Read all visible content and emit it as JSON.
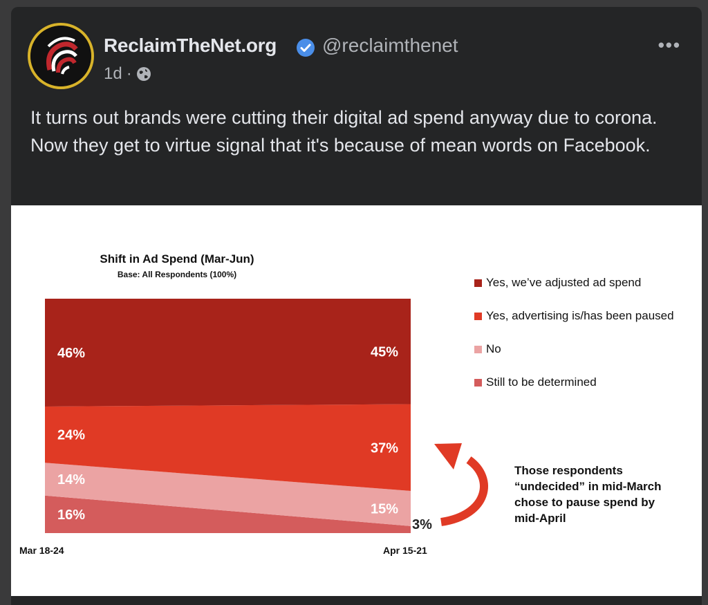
{
  "post": {
    "author_name": "ReclaimTheNet.org",
    "handle": "@reclaimthenet",
    "time": "1d",
    "separator": "·",
    "more_label": "•••",
    "text": "It turns out brands were cutting their digital ad spend anyway due to corona. Now they get to virtue signal that it's because of mean words on Facebook."
  },
  "icons": {
    "verified": "verified-badge-icon",
    "privacy": "globe-icon",
    "more": "more-options-icon"
  },
  "colors": {
    "adjusted": "#a8231a",
    "paused": "#e03a25",
    "no": "#eba3a3",
    "undetermined": "#d45c5c",
    "verified": "#4a8ee8"
  },
  "chart_data": {
    "type": "area",
    "title": "Shift in Ad Spend (Mar-Jun)",
    "subtitle": "Base:  All Respondents (100%)",
    "x": [
      "Mar 18-24",
      "Apr 15-21"
    ],
    "series": [
      {
        "name": "Yes, we’ve adjusted ad spend",
        "values": [
          46,
          45
        ],
        "labels": [
          "46%",
          "45%"
        ]
      },
      {
        "name": "Yes, advertising is/has been paused",
        "values": [
          24,
          37
        ],
        "labels": [
          "24%",
          "37%"
        ]
      },
      {
        "name": "No",
        "values": [
          14,
          15
        ],
        "labels": [
          "14%",
          "15%"
        ]
      },
      {
        "name": "Still to be determined",
        "values": [
          16,
          3
        ],
        "labels": [
          "16%",
          "3%"
        ]
      }
    ],
    "ylim": [
      0,
      100
    ],
    "annotation": "Those respondents “undecided” in mid-March chose to pause spend by mid-April"
  }
}
